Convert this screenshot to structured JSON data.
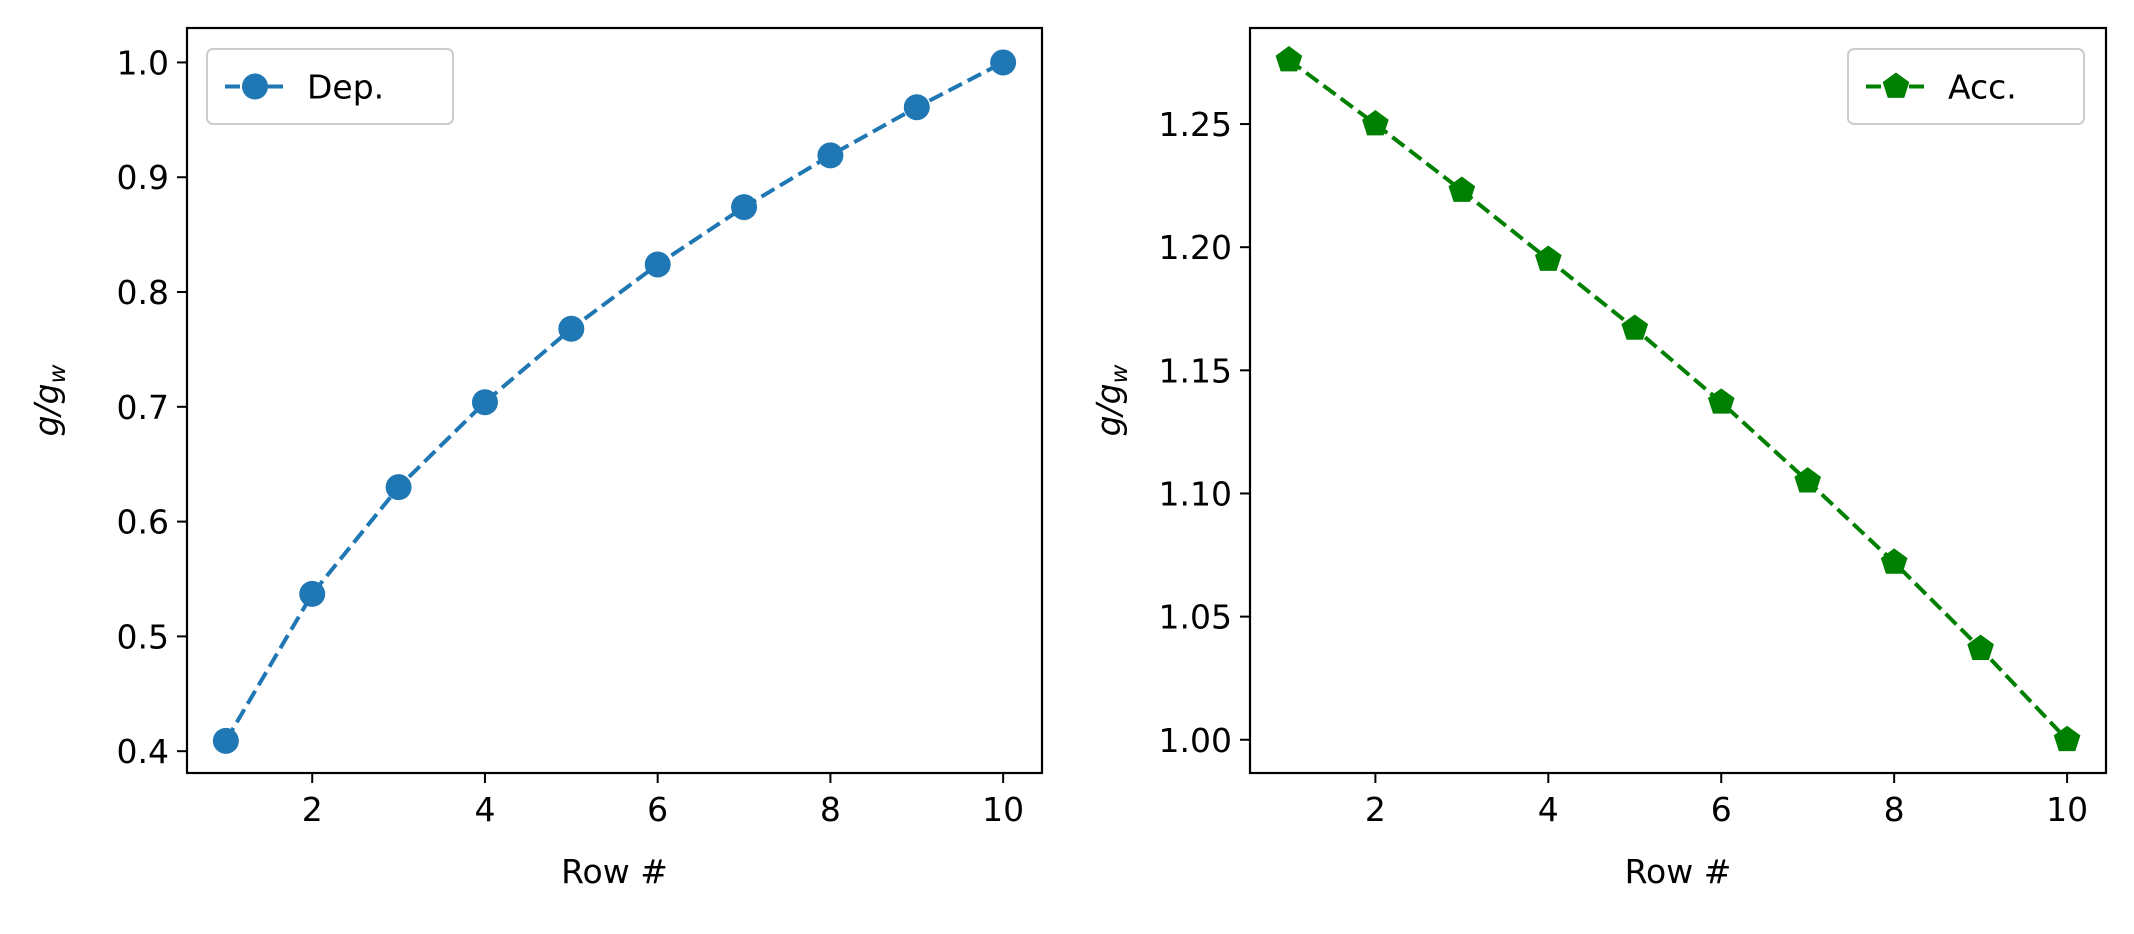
{
  "chart_data": [
    {
      "type": "line",
      "title": "",
      "xlabel": "Row #",
      "ylabel": "g/g",
      "ylabel_sub": "w",
      "xlim": [
        0.55,
        10.45
      ],
      "ylim": [
        0.381,
        1.03
      ],
      "xticks": [
        2,
        4,
        6,
        8,
        10
      ],
      "yticks": [
        0.4,
        0.5,
        0.6,
        0.7,
        0.8,
        0.9,
        1.0
      ],
      "ytick_labels": [
        "0.4",
        "0.5",
        "0.6",
        "0.7",
        "0.8",
        "0.9",
        "1.0"
      ],
      "grid": false,
      "legend_position": "upper-left",
      "series": [
        {
          "name": "Dep.",
          "color": "#1f77b4",
          "marker": "circle",
          "linestyle": "dashed",
          "x": [
            1,
            2,
            3,
            4,
            5,
            6,
            7,
            8,
            9,
            10
          ],
          "y": [
            0.409,
            0.537,
            0.63,
            0.704,
            0.768,
            0.824,
            0.874,
            0.919,
            0.961,
            1.0
          ]
        }
      ]
    },
    {
      "type": "line",
      "title": "",
      "xlabel": "Row #",
      "ylabel": "g/g",
      "ylabel_sub": "w",
      "xlim": [
        0.55,
        10.45
      ],
      "ylim": [
        0.9865,
        1.289
      ],
      "xticks": [
        2,
        4,
        6,
        8,
        10
      ],
      "yticks": [
        1.0,
        1.05,
        1.1,
        1.15,
        1.2,
        1.25
      ],
      "ytick_labels": [
        "1.00",
        "1.05",
        "1.10",
        "1.15",
        "1.20",
        "1.25"
      ],
      "grid": false,
      "legend_position": "upper-right",
      "series": [
        {
          "name": "Acc.",
          "color": "#008000",
          "marker": "pentagon",
          "linestyle": "dashed",
          "x": [
            1,
            2,
            3,
            4,
            5,
            6,
            7,
            8,
            9,
            10
          ],
          "y": [
            1.276,
            1.25,
            1.223,
            1.195,
            1.167,
            1.137,
            1.105,
            1.072,
            1.037,
            1.0
          ]
        }
      ]
    }
  ]
}
